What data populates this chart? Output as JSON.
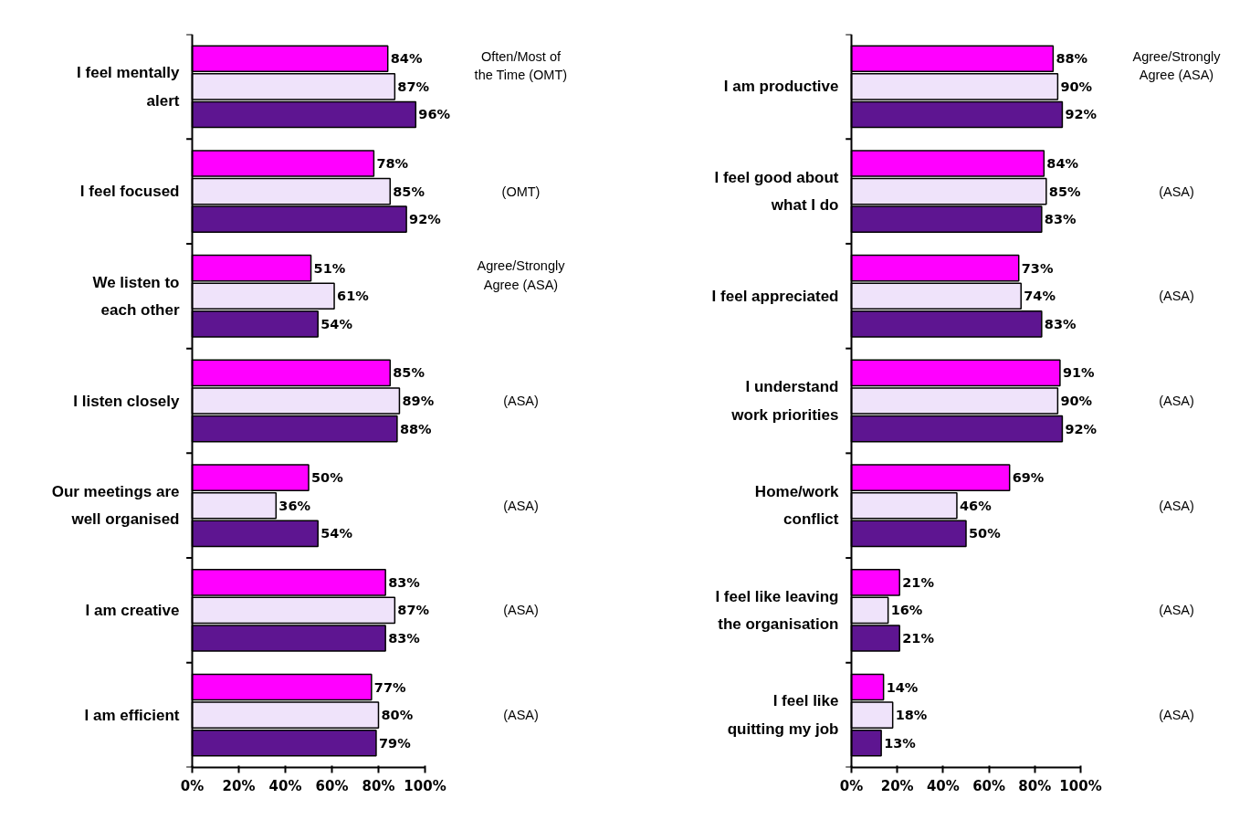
{
  "chart_data": [
    {
      "type": "bar",
      "orientation": "horizontal",
      "categories": [
        "I feel mentally\nalert",
        "I feel focused",
        "We listen to\neach other",
        "I listen closely",
        "Our meetings are\nwell organised",
        "I am creative",
        "I am efficient"
      ],
      "series": [
        {
          "color": "#ff00ff",
          "values": [
            84,
            78,
            51,
            85,
            50,
            83,
            77
          ],
          "value_labels": [
            "84%",
            "78%",
            "51%",
            "85%",
            "50%",
            "83%",
            "77%"
          ]
        },
        {
          "color": "#efe3fa",
          "values": [
            87,
            85,
            61,
            89,
            36,
            87,
            80
          ],
          "value_labels": [
            "87%",
            "85%",
            "61%",
            "89%",
            "36%",
            "87%",
            "80%"
          ]
        },
        {
          "color": "#5e1591",
          "values": [
            96,
            92,
            54,
            88,
            54,
            83,
            79
          ],
          "value_labels": [
            "96%",
            "92%",
            "54%",
            "88%",
            "54%",
            "83%",
            "79%"
          ]
        }
      ],
      "xlim": [
        0,
        100
      ],
      "xticks": [
        {
          "value": 0,
          "label": "0%"
        },
        {
          "value": 20,
          "label": "20%"
        },
        {
          "value": 40,
          "label": "40%"
        },
        {
          "value": 60,
          "label": "60%"
        },
        {
          "value": 80,
          "label": "80%"
        },
        {
          "value": 100,
          "label": "100%"
        }
      ],
      "annotations": [
        "Often/Most of\nthe Time (OMT)",
        "(OMT)",
        "Agree/Strongly\nAgree (ASA)",
        "(ASA)",
        "(ASA)",
        "(ASA)",
        "(ASA)"
      ]
    },
    {
      "type": "bar",
      "orientation": "horizontal",
      "categories": [
        "I am productive",
        "I feel good about\nwhat I do",
        "I feel appreciated",
        "I understand\nwork priorities",
        "Home/work\nconflict",
        "I feel like leaving\nthe organisation",
        "I feel like\nquitting my job"
      ],
      "series": [
        {
          "color": "#ff00ff",
          "values": [
            88,
            84,
            73,
            91,
            69,
            21,
            14
          ],
          "value_labels": [
            "88%",
            "84%",
            "73%",
            "91%",
            "69%",
            "21%",
            "14%"
          ]
        },
        {
          "color": "#efe3fa",
          "values": [
            90,
            85,
            74,
            90,
            46,
            16,
            18
          ],
          "value_labels": [
            "90%",
            "85%",
            "74%",
            "90%",
            "46%",
            "16%",
            "18%"
          ]
        },
        {
          "color": "#5e1591",
          "values": [
            92,
            83,
            83,
            92,
            50,
            21,
            13
          ],
          "value_labels": [
            "92%",
            "83%",
            "83%",
            "92%",
            "50%",
            "21%",
            "13%"
          ]
        }
      ],
      "xlim": [
        0,
        100
      ],
      "xticks": [
        {
          "value": 0,
          "label": "0%"
        },
        {
          "value": 20,
          "label": "20%"
        },
        {
          "value": 40,
          "label": "40%"
        },
        {
          "value": 60,
          "label": "60%"
        },
        {
          "value": 80,
          "label": "80%"
        },
        {
          "value": 100,
          "label": "100%"
        }
      ],
      "annotations": [
        "Agree/Strongly\nAgree (ASA)",
        "(ASA)",
        "(ASA)",
        "(ASA)",
        "(ASA)",
        "(ASA)",
        "(ASA)"
      ]
    }
  ]
}
